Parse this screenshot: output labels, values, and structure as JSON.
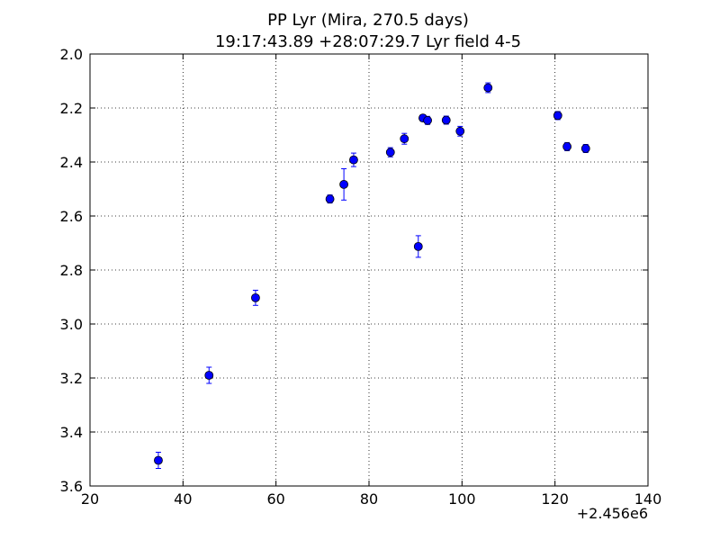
{
  "chart_data": {
    "type": "scatter",
    "title": "PP Lyr (Mira, 270.5 days)",
    "subtitle": "19:17:43.89 +28:07:29.7 Lyr field 4-5",
    "xlabel": "",
    "ylabel": "",
    "x_offset_label": "+2.456e6",
    "xlim": [
      20,
      140
    ],
    "ylim": [
      2.0,
      3.6
    ],
    "y_inverted": true,
    "grid": true,
    "x_ticks": [
      "20",
      "40",
      "60",
      "80",
      "100",
      "120",
      "140"
    ],
    "y_ticks": [
      "2.0",
      "2.2",
      "2.4",
      "2.6",
      "2.8",
      "3.0",
      "3.2",
      "3.4",
      "3.6"
    ],
    "marker_color": "#0000ff",
    "points": [
      {
        "x": 34.7,
        "y": 3.505,
        "err": 0.03
      },
      {
        "x": 45.6,
        "y": 3.19,
        "err": 0.03
      },
      {
        "x": 55.6,
        "y": 2.903,
        "err": 0.028
      },
      {
        "x": 71.6,
        "y": 2.537,
        "err": 0.015
      },
      {
        "x": 74.6,
        "y": 2.483,
        "err": 0.058
      },
      {
        "x": 76.7,
        "y": 2.392,
        "err": 0.025
      },
      {
        "x": 84.6,
        "y": 2.364,
        "err": 0.017
      },
      {
        "x": 87.6,
        "y": 2.314,
        "err": 0.02
      },
      {
        "x": 90.6,
        "y": 2.713,
        "err": 0.04
      },
      {
        "x": 91.6,
        "y": 2.237,
        "err": 0.012
      },
      {
        "x": 92.6,
        "y": 2.246,
        "err": 0.015
      },
      {
        "x": 96.6,
        "y": 2.245,
        "err": 0.015
      },
      {
        "x": 99.6,
        "y": 2.286,
        "err": 0.018
      },
      {
        "x": 105.6,
        "y": 2.125,
        "err": 0.018
      },
      {
        "x": 120.6,
        "y": 2.228,
        "err": 0.015
      },
      {
        "x": 122.6,
        "y": 2.343,
        "err": 0.015
      },
      {
        "x": 126.6,
        "y": 2.35,
        "err": 0.015
      }
    ]
  }
}
